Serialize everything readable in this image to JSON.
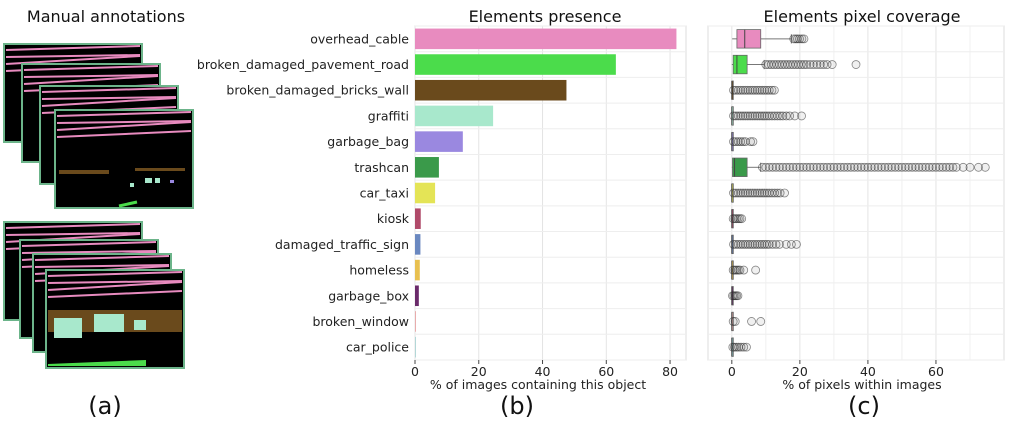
{
  "panels": {
    "a": {
      "title": "Manual annotations",
      "label": "(a)"
    },
    "b": {
      "title": "Elements presence",
      "label": "(b)"
    },
    "c": {
      "title": "Elements pixel coverage",
      "label": "(c)"
    }
  },
  "colors": {
    "overhead_cable": "#e88bbf",
    "broken_damaged_pavement_road": "#4bdc4b",
    "broken_damaged_bricks_wall": "#6a4a1c",
    "graffiti": "#a8e8cc",
    "garbage_bag": "#9a88e0",
    "trashcan": "#3a9a4a",
    "car_taxi": "#e4e456",
    "kiosk": "#b04a6a",
    "damaged_traffic_sign": "#6a88c0",
    "homeless": "#e8c050",
    "garbage_box": "#6a2a6a",
    "broken_window": "#e8a8a8",
    "car_police": "#88c0c0"
  },
  "chart_data": [
    {
      "type": "bar",
      "orientation": "horizontal",
      "title": "Elements presence",
      "xlabel": "% of images containing this object",
      "categories": [
        "overhead_cable",
        "broken_damaged_pavement_road",
        "broken_damaged_bricks_wall",
        "graffiti",
        "garbage_bag",
        "trashcan",
        "car_taxi",
        "kiosk",
        "damaged_traffic_sign",
        "homeless",
        "garbage_box",
        "broken_window",
        "car_police"
      ],
      "values": [
        82,
        63,
        47.5,
        24.5,
        15,
        7.5,
        6.3,
        1.8,
        1.7,
        1.5,
        1.2,
        0.3,
        0.2
      ],
      "xlim": [
        0,
        85
      ],
      "xticks": [
        0,
        20,
        40,
        60,
        80
      ],
      "grid": true
    },
    {
      "type": "box",
      "orientation": "horizontal",
      "title": "Elements pixel coverage",
      "xlabel": "% of pixels within images",
      "categories": [
        "overhead_cable",
        "broken_damaged_pavement_road",
        "broken_damaged_bricks_wall",
        "graffiti",
        "garbage_bag",
        "trashcan",
        "car_taxi",
        "kiosk",
        "damaged_traffic_sign",
        "homeless",
        "garbage_box",
        "broken_window",
        "car_police"
      ],
      "xlim": [
        -7,
        80
      ],
      "xticks": [
        0,
        20,
        40,
        60
      ],
      "grid": true,
      "boxes": [
        {
          "q1": 1.5,
          "median": 3.8,
          "q3": 8.5,
          "whisker_low": 0.1,
          "whisker_high": 17.5,
          "outliers": [
            18.2,
            18.8,
            19.3,
            19.9,
            20.6,
            21.2
          ]
        },
        {
          "q1": 0.4,
          "median": 1.5,
          "q3": 4.5,
          "whisker_low": 0,
          "whisker_high": 9.5,
          "outliers": [
            10,
            10.8,
            11.6,
            12.4,
            13.2,
            14,
            14.8,
            15.6,
            16.4,
            17.2,
            18,
            18.8,
            19.6,
            20.4,
            21.2,
            22,
            23,
            24,
            25,
            26,
            27,
            28,
            29.5,
            36.5
          ]
        },
        {
          "q1": 0,
          "median": 0,
          "q3": 0,
          "whisker_low": 0,
          "whisker_high": 0,
          "outliers": [
            0.5,
            1.2,
            1.9,
            2.6,
            3.3,
            4,
            4.7,
            5.4,
            6.1,
            6.8,
            7.5,
            8.2,
            8.9,
            9.6,
            10.3,
            11,
            11.8,
            12.5
          ]
        },
        {
          "q1": 0,
          "median": 0,
          "q3": 0,
          "whisker_low": 0,
          "whisker_high": 0,
          "outliers": [
            0.5,
            1.2,
            1.9,
            2.6,
            3.3,
            4,
            4.7,
            5.4,
            6.1,
            6.8,
            7.5,
            8.2,
            8.9,
            9.6,
            10.3,
            11,
            11.8,
            12.6,
            13.4,
            14.2,
            15,
            16,
            17,
            18.5,
            20.5
          ]
        },
        {
          "q1": 0,
          "median": 0,
          "q3": 0,
          "whisker_low": 0,
          "whisker_high": 0,
          "outliers": [
            0.5,
            1.2,
            1.9,
            2.6,
            3.3,
            4,
            5.5,
            6.2
          ]
        },
        {
          "q1": 0.2,
          "median": 0.8,
          "q3": 4.5,
          "whisker_low": 0,
          "whisker_high": 8.5,
          "outliers": [
            9,
            10,
            11,
            12,
            13,
            14,
            15,
            16,
            17,
            18,
            19,
            20,
            21,
            22,
            23,
            24,
            25,
            26,
            27,
            28,
            29,
            30,
            31,
            32,
            33,
            34,
            35,
            36,
            37,
            38,
            39,
            40,
            41,
            42,
            43,
            44,
            45,
            46,
            47,
            48,
            49,
            50,
            51,
            52,
            53,
            54,
            55,
            56,
            57,
            58,
            59,
            60,
            61,
            62,
            63,
            64,
            65,
            66,
            68,
            70,
            72.5,
            74.5
          ]
        },
        {
          "q1": 0,
          "median": 0,
          "q3": 0,
          "whisker_low": 0,
          "whisker_high": 0,
          "outliers": [
            0.5,
            1.2,
            1.9,
            2.6,
            3.3,
            4,
            4.7,
            5.4,
            6.1,
            6.8,
            7.5,
            8.2,
            8.9,
            9.6,
            10.3,
            11,
            11.8,
            12.6,
            13.4,
            14.2,
            15.5
          ]
        },
        {
          "q1": 0,
          "median": 0,
          "q3": 0,
          "whisker_low": 0,
          "whisker_high": 0,
          "outliers": [
            0.4,
            0.9,
            1.4,
            1.9,
            2.4,
            2.9
          ]
        },
        {
          "q1": 0,
          "median": 0,
          "q3": 0,
          "whisker_low": 0,
          "whisker_high": 0,
          "outliers": [
            0.5,
            1.2,
            1.9,
            2.6,
            3.3,
            4,
            4.7,
            5.4,
            6.1,
            6.8,
            7.5,
            8.2,
            8.9,
            9.6,
            10.3,
            11,
            12,
            13,
            14,
            16,
            17.5,
            19
          ]
        },
        {
          "q1": 0,
          "median": 0,
          "q3": 0,
          "whisker_low": 0,
          "whisker_high": 0,
          "outliers": [
            0.4,
            0.9,
            1.4,
            1.9,
            2.4,
            3.5,
            7
          ]
        },
        {
          "q1": 0,
          "median": 0,
          "q3": 0,
          "whisker_low": 0,
          "whisker_high": 0,
          "outliers": [
            0.2,
            0.6,
            1,
            1.4,
            1.8
          ]
        },
        {
          "q1": 0,
          "median": 0,
          "q3": 0,
          "whisker_low": 0,
          "whisker_high": 0,
          "outliers": [
            0.4,
            1,
            5.8,
            8.5
          ]
        },
        {
          "q1": 0,
          "median": 0,
          "q3": 0,
          "whisker_low": 0,
          "whisker_high": 0,
          "outliers": [
            0.3,
            0.8,
            1.4,
            2,
            2.7,
            3.5,
            4.3
          ]
        }
      ]
    }
  ]
}
